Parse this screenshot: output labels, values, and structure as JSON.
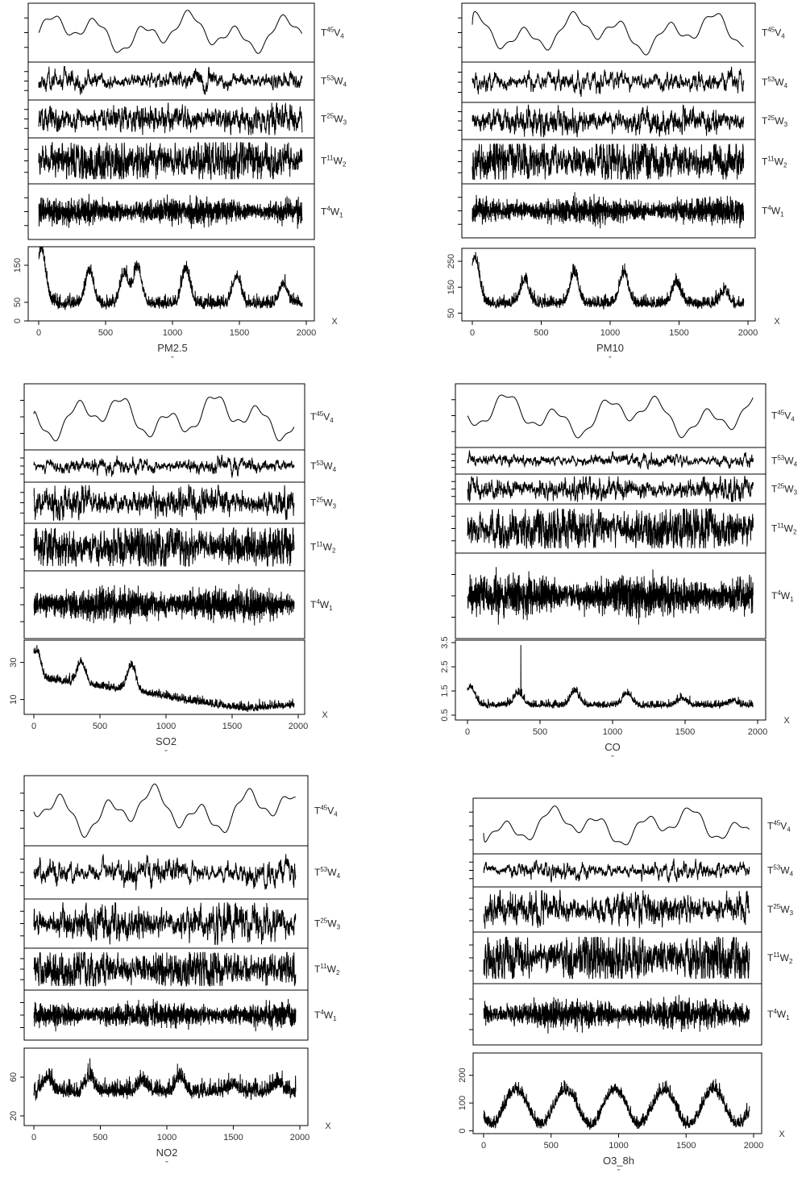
{
  "chart_data": [
    {
      "type": "line",
      "xlabel": "PM2.5",
      "xlabel_sub": "ˇ",
      "x_axis_name": "X",
      "xlim": [
        0,
        2000
      ],
      "xticks": [
        "0",
        "500",
        "1000",
        "1500",
        "2000"
      ],
      "ylim": [
        0,
        200
      ],
      "yticks": [
        "0",
        "50",
        "150"
      ],
      "grid": false,
      "n_points": 1970,
      "components": [
        {
          "name": "T",
          "sup": "45",
          "sub_letter": "V",
          "sub": "4"
        },
        {
          "name": "T",
          "sup": "53",
          "sub_letter": "W",
          "sub": "4"
        },
        {
          "name": "T",
          "sup": "25",
          "sub_letter": "W",
          "sub": "3"
        },
        {
          "name": "T",
          "sup": "11",
          "sub_letter": "W",
          "sub": "2"
        },
        {
          "name": "T",
          "sup": "4",
          "sub_letter": "W",
          "sub": "1"
        }
      ],
      "series_profile": {
        "base": 45,
        "noise": 22,
        "peaks": [
          [
            20,
            150
          ],
          [
            380,
            90
          ],
          [
            640,
            80
          ],
          [
            740,
            100
          ],
          [
            1100,
            95
          ],
          [
            1480,
            75
          ],
          [
            1830,
            55
          ]
        ]
      }
    },
    {
      "type": "line",
      "xlabel": "PM10",
      "xlabel_sub": "ˇ",
      "x_axis_name": "X",
      "xlim": [
        0,
        2000
      ],
      "xticks": [
        "0",
        "500",
        "1000",
        "1500",
        "2000"
      ],
      "ylim": [
        20,
        300
      ],
      "yticks": [
        "50",
        "150",
        "250"
      ],
      "grid": false,
      "n_points": 1970,
      "components": [
        {
          "name": "T",
          "sup": "45",
          "sub_letter": "V",
          "sub": "4"
        },
        {
          "name": "T",
          "sup": "53",
          "sub_letter": "W",
          "sub": "4"
        },
        {
          "name": "T",
          "sup": "25",
          "sub_letter": "W",
          "sub": "3"
        },
        {
          "name": "T",
          "sup": "11",
          "sub_letter": "W",
          "sub": "2"
        },
        {
          "name": "T",
          "sup": "4",
          "sub_letter": "W",
          "sub": "1"
        }
      ],
      "series_profile": {
        "base": 85,
        "noise": 30,
        "peaks": [
          [
            20,
            180
          ],
          [
            380,
            90
          ],
          [
            740,
            120
          ],
          [
            1100,
            120
          ],
          [
            1480,
            80
          ],
          [
            1830,
            50
          ]
        ]
      }
    },
    {
      "type": "line",
      "xlabel": "SO2",
      "xlabel_sub": "ˇ",
      "x_axis_name": "X",
      "xlim": [
        0,
        2000
      ],
      "xticks": [
        "0",
        "500",
        "1000",
        "1500",
        "2000"
      ],
      "ylim": [
        2,
        42
      ],
      "yticks": [
        "10",
        "30"
      ],
      "grid": false,
      "n_points": 1970,
      "components": [
        {
          "name": "T",
          "sup": "45",
          "sub_letter": "V",
          "sub": "4"
        },
        {
          "name": "T",
          "sup": "53",
          "sub_letter": "W",
          "sub": "4"
        },
        {
          "name": "T",
          "sup": "25",
          "sub_letter": "W",
          "sub": "3"
        },
        {
          "name": "T",
          "sup": "11",
          "sub_letter": "W",
          "sub": "2"
        },
        {
          "name": "T",
          "sup": "4",
          "sub_letter": "W",
          "sub": "1"
        }
      ],
      "series_profile": {
        "base": 8,
        "noise": 3,
        "trend": [
          [
            0,
            22
          ],
          [
            400,
            18
          ],
          [
            800,
            14
          ],
          [
            1200,
            9
          ],
          [
            1600,
            5
          ],
          [
            1970,
            7
          ]
        ],
        "peaks": [
          [
            20,
            15
          ],
          [
            360,
            12
          ],
          [
            740,
            14
          ]
        ]
      }
    },
    {
      "type": "line",
      "xlabel": "CO",
      "xlabel_sub": "ˇ",
      "x_axis_name": "X",
      "xlim": [
        0,
        2000
      ],
      "xticks": [
        "0",
        "500",
        "1000",
        "1500",
        "2000"
      ],
      "ylim": [
        0.3,
        3.6
      ],
      "yticks": [
        "0.5",
        "1.5",
        "2.5",
        "3.5"
      ],
      "grid": false,
      "n_points": 1970,
      "components": [
        {
          "name": "T",
          "sup": "45",
          "sub_letter": "V",
          "sub": "4"
        },
        {
          "name": "T",
          "sup": "53",
          "sub_letter": "W",
          "sub": "4"
        },
        {
          "name": "T",
          "sup": "25",
          "sub_letter": "W",
          "sub": "3"
        },
        {
          "name": "T",
          "sup": "11",
          "sub_letter": "W",
          "sub": "2"
        },
        {
          "name": "T",
          "sup": "4",
          "sub_letter": "W",
          "sub": "1"
        }
      ],
      "series_profile": {
        "base": 0.9,
        "noise": 0.2,
        "spike": [
          368,
          3.4
        ],
        "peaks": [
          [
            20,
            0.8
          ],
          [
            350,
            0.5
          ],
          [
            740,
            0.6
          ],
          [
            1100,
            0.5
          ],
          [
            1480,
            0.3
          ],
          [
            1830,
            0.2
          ]
        ]
      }
    },
    {
      "type": "line",
      "xlabel": "NO2",
      "xlabel_sub": "ˇ",
      "x_axis_name": "X",
      "xlim": [
        0,
        2000
      ],
      "xticks": [
        "0",
        "500",
        "1000",
        "1500",
        "2000"
      ],
      "ylim": [
        10,
        90
      ],
      "yticks": [
        "20",
        "60"
      ],
      "grid": false,
      "n_points": 1970,
      "components": [
        {
          "name": "T",
          "sup": "45",
          "sub_letter": "V",
          "sub": "4"
        },
        {
          "name": "T",
          "sup": "53",
          "sub_letter": "W",
          "sub": "4"
        },
        {
          "name": "T",
          "sup": "25",
          "sub_letter": "W",
          "sub": "3"
        },
        {
          "name": "T",
          "sup": "11",
          "sub_letter": "W",
          "sub": "2"
        },
        {
          "name": "T",
          "sup": "4",
          "sub_letter": "W",
          "sub": "1"
        }
      ],
      "series_profile": {
        "base": 45,
        "noise": 12,
        "peaks": [
          [
            100,
            15
          ],
          [
            420,
            15
          ],
          [
            820,
            10
          ],
          [
            1100,
            15
          ],
          [
            1500,
            8
          ],
          [
            1830,
            10
          ]
        ]
      }
    },
    {
      "type": "line",
      "xlabel": "O3_8h",
      "xlabel_sub": "ˇ",
      "x_axis_name": "X",
      "xlim": [
        0,
        2000
      ],
      "xticks": [
        "0",
        "500",
        "1000",
        "1500",
        "2000"
      ],
      "ylim": [
        -10,
        280
      ],
      "yticks": [
        "0",
        "100",
        "200"
      ],
      "grid": false,
      "n_points": 1970,
      "components": [
        {
          "name": "T",
          "sup": "45",
          "sub_letter": "V",
          "sub": "4"
        },
        {
          "name": "T",
          "sup": "53",
          "sub_letter": "W",
          "sub": "4"
        },
        {
          "name": "T",
          "sup": "25",
          "sub_letter": "W",
          "sub": "3"
        },
        {
          "name": "T",
          "sup": "11",
          "sub_letter": "W",
          "sub": "2"
        },
        {
          "name": "T",
          "sup": "4",
          "sub_letter": "W",
          "sub": "1"
        }
      ],
      "series_profile": {
        "base": 20,
        "noise": 30,
        "seasonal": {
          "period": 365,
          "amp": 90,
          "phase": 150
        }
      }
    }
  ]
}
